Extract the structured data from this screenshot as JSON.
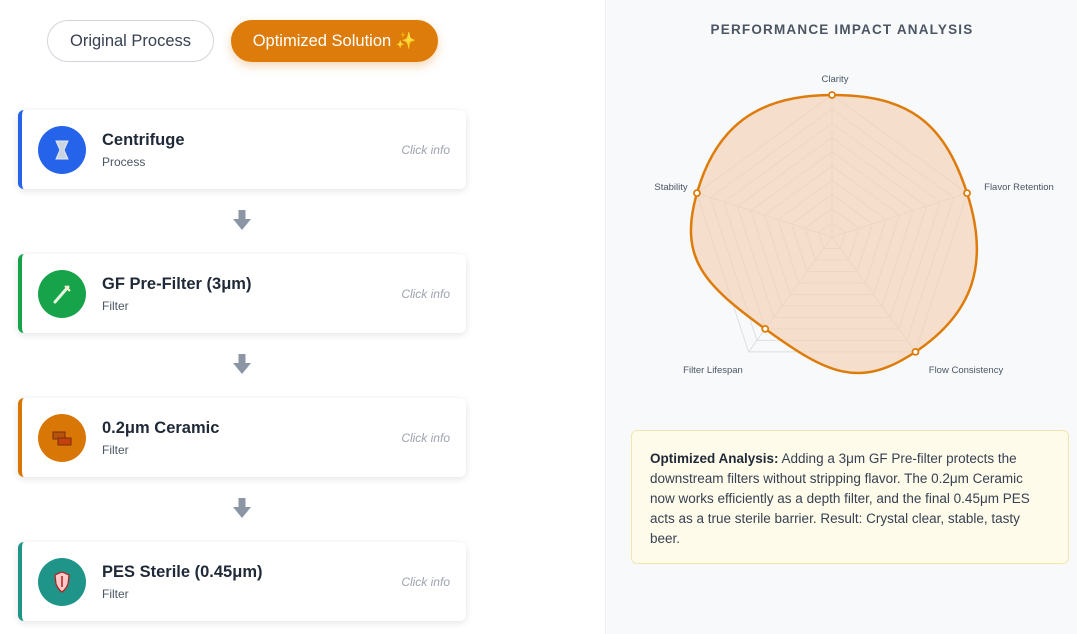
{
  "toggle": {
    "original_label": "Original Process",
    "optimized_label": "Optimized Solution ✨"
  },
  "steps": [
    {
      "title": "Centrifuge",
      "type": "Process",
      "info": "Click info",
      "color": "#2563eb",
      "icon": "centrifuge-icon",
      "glyph": "⏳"
    },
    {
      "title": "GF Pre-Filter (3μm)",
      "type": "Filter",
      "info": "Click info",
      "color": "#16a34a",
      "icon": "pipette-icon",
      "glyph": "╱"
    },
    {
      "title": "0.2μm Ceramic",
      "type": "Filter",
      "info": "Click info",
      "color": "#d97706",
      "icon": "brick-icon",
      "glyph": "▰"
    },
    {
      "title": "PES Sterile (0.45μm)",
      "type": "Filter",
      "info": "Click info",
      "color": "#1f9488",
      "icon": "shield-icon",
      "glyph": "⛊"
    }
  ],
  "panel": {
    "title": "PERFORMANCE IMPACT ANALYSIS"
  },
  "radar": {
    "axes": [
      "Clarity",
      "Flavor Retention",
      "Flow Consistency",
      "Filter Lifespan",
      "Stability"
    ],
    "values": [
      100,
      100,
      100,
      80,
      100
    ],
    "max": 100,
    "line_color": "#dd7c0b",
    "fill_color": "#f4d3b7"
  },
  "analysis": {
    "label": "Optimized Analysis:",
    "text": " Adding a 3μm GF Pre-filter protects the downstream filters without stripping flavor. The 0.2μm Ceramic now works efficiently as a depth filter, and the final 0.45μm PES acts as a true sterile barrier. Result: Crystal clear, stable, tasty beer."
  }
}
